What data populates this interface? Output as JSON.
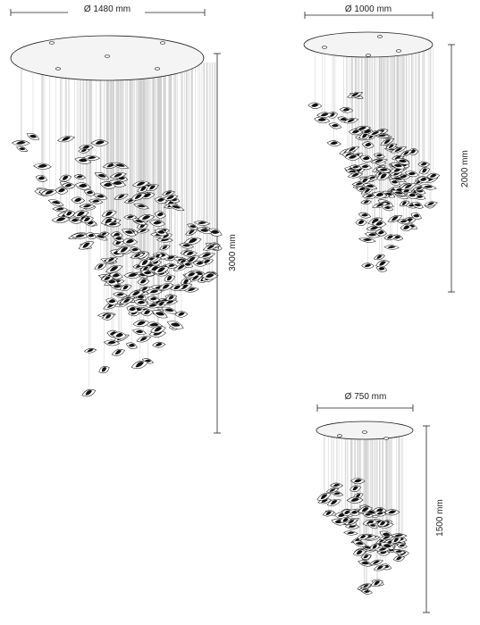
{
  "fixtures": [
    {
      "id": "large",
      "diameter_label": "Ø 1480 mm",
      "height_label": "3000 mm",
      "canopy_holes": 5
    },
    {
      "id": "medium",
      "diameter_label": "Ø 1000 mm",
      "height_label": "2000 mm",
      "canopy_holes": 4
    },
    {
      "id": "small",
      "diameter_label": "Ø 750 mm",
      "height_label": "1500 mm",
      "canopy_holes": 3
    }
  ],
  "colors": {
    "line": "#222222",
    "canopy_fill": "#f4f4f4",
    "wire": "#c9c9c9",
    "element_dark": "#111111",
    "element_light": "#ffffff"
  }
}
